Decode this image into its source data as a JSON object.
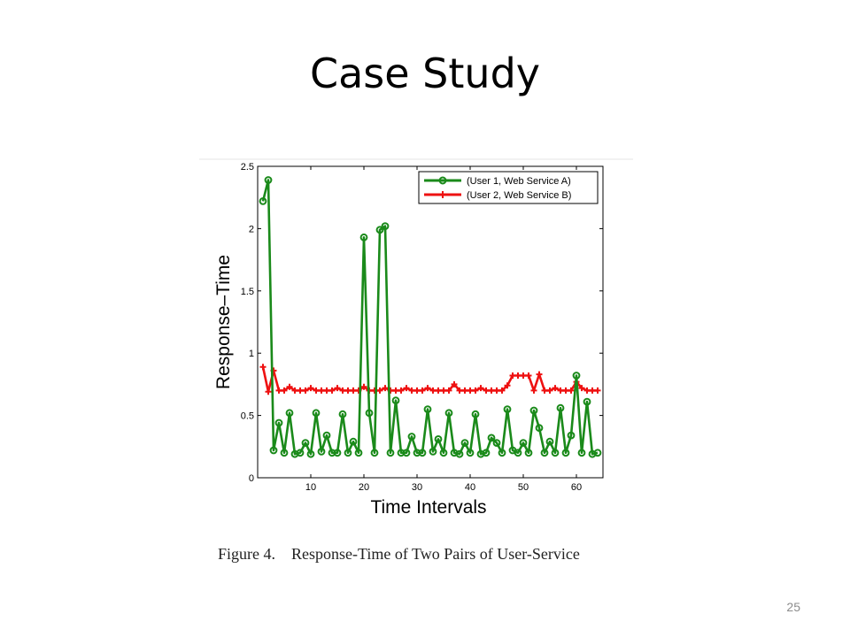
{
  "slide": {
    "title": "Case Study",
    "caption": "Figure 4.    Response-Time of Two Pairs of User-Service",
    "page_number": "25"
  },
  "chart_data": {
    "type": "line",
    "title": "",
    "xlabel": "Time Intervals",
    "ylabel": "Response–Time",
    "xlim": [
      0,
      65
    ],
    "ylim": [
      0,
      2.5
    ],
    "x_ticks": [
      10,
      20,
      30,
      40,
      50,
      60
    ],
    "y_ticks": [
      0,
      0.5,
      1,
      1.5,
      2,
      2.5
    ],
    "y_tick_labels": [
      "0",
      "0.5",
      "1",
      "1.5",
      "2",
      "2.5"
    ],
    "grid": false,
    "legend_position": "top-right",
    "x": [
      1,
      2,
      3,
      4,
      5,
      6,
      7,
      8,
      9,
      10,
      11,
      12,
      13,
      14,
      15,
      16,
      17,
      18,
      19,
      20,
      21,
      22,
      23,
      24,
      25,
      26,
      27,
      28,
      29,
      30,
      31,
      32,
      33,
      34,
      35,
      36,
      37,
      38,
      39,
      40,
      41,
      42,
      43,
      44,
      45,
      46,
      47,
      48,
      49,
      50,
      51,
      52,
      53,
      54,
      55,
      56,
      57,
      58,
      59,
      60,
      61,
      62,
      63,
      64
    ],
    "series": [
      {
        "name": "(User 1, Web Service A)",
        "color": "#1a8a1a",
        "marker": "circle",
        "values": [
          2.22,
          2.39,
          0.22,
          0.44,
          0.2,
          0.52,
          0.19,
          0.2,
          0.28,
          0.19,
          0.52,
          0.21,
          0.34,
          0.2,
          0.2,
          0.51,
          0.2,
          0.29,
          0.2,
          1.93,
          0.52,
          0.2,
          1.99,
          2.02,
          0.2,
          0.62,
          0.2,
          0.2,
          0.33,
          0.2,
          0.2,
          0.55,
          0.21,
          0.31,
          0.2,
          0.52,
          0.2,
          0.19,
          0.28,
          0.2,
          0.51,
          0.19,
          0.2,
          0.32,
          0.28,
          0.2,
          0.55,
          0.22,
          0.2,
          0.28,
          0.2,
          0.54,
          0.4,
          0.2,
          0.29,
          0.2,
          0.56,
          0.2,
          0.34,
          0.82,
          0.2,
          0.61,
          0.19,
          0.2
        ]
      },
      {
        "name": "(User 2, Web Service B)",
        "color": "#ee1111",
        "marker": "plus",
        "values": [
          0.89,
          0.69,
          0.86,
          0.7,
          0.7,
          0.73,
          0.7,
          0.7,
          0.7,
          0.72,
          0.7,
          0.7,
          0.7,
          0.7,
          0.72,
          0.7,
          0.7,
          0.7,
          0.7,
          0.73,
          0.7,
          0.7,
          0.7,
          0.72,
          0.7,
          0.7,
          0.7,
          0.72,
          0.7,
          0.7,
          0.7,
          0.72,
          0.7,
          0.7,
          0.7,
          0.7,
          0.75,
          0.7,
          0.7,
          0.7,
          0.7,
          0.72,
          0.7,
          0.7,
          0.7,
          0.7,
          0.74,
          0.82,
          0.82,
          0.82,
          0.82,
          0.7,
          0.83,
          0.7,
          0.7,
          0.72,
          0.7,
          0.7,
          0.7,
          0.77,
          0.72,
          0.7,
          0.7,
          0.7
        ]
      }
    ]
  }
}
